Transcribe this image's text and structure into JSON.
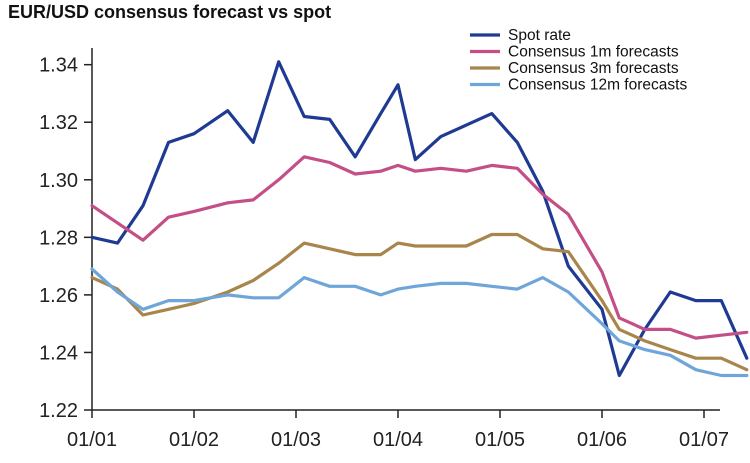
{
  "chart_data": {
    "type": "line",
    "title": "EUR/USD consensus forecast vs spot",
    "xlabel": "",
    "ylabel": "",
    "x_ticks": [
      "01/01",
      "01/02",
      "01/03",
      "01/04",
      "01/05",
      "01/06",
      "01/07"
    ],
    "ylim": [
      1.22,
      1.345
    ],
    "y_ticks": [
      "1.22",
      "1.24",
      "1.26",
      "1.28",
      "1.30",
      "1.32",
      "1.34"
    ],
    "y_tick_values": [
      1.22,
      1.24,
      1.26,
      1.28,
      1.3,
      1.32,
      1.34
    ],
    "grid": false,
    "legend_position": "top-right",
    "series": [
      {
        "name": "Spot rate",
        "color": "#1F3A93",
        "points": [
          [
            0.0,
            1.28
          ],
          [
            0.25,
            1.278
          ],
          [
            0.5,
            1.291
          ],
          [
            0.75,
            1.313
          ],
          [
            1.0,
            1.316
          ],
          [
            1.33,
            1.324
          ],
          [
            1.58,
            1.313
          ],
          [
            1.83,
            1.341
          ],
          [
            2.08,
            1.322
          ],
          [
            2.33,
            1.321
          ],
          [
            2.58,
            1.308
          ],
          [
            2.83,
            1.323
          ],
          [
            3.0,
            1.333
          ],
          [
            3.17,
            1.307
          ],
          [
            3.42,
            1.315
          ],
          [
            3.67,
            1.319
          ],
          [
            3.92,
            1.323
          ],
          [
            4.17,
            1.313
          ],
          [
            4.42,
            1.296
          ],
          [
            4.67,
            1.27
          ],
          [
            5.0,
            1.255
          ],
          [
            5.17,
            1.232
          ],
          [
            5.42,
            1.248
          ],
          [
            5.67,
            1.261
          ],
          [
            5.92,
            1.258
          ],
          [
            6.17,
            1.258
          ],
          [
            6.42,
            1.238
          ]
        ]
      },
      {
        "name": "Consensus 1m forecasts",
        "color": "#C44F86",
        "points": [
          [
            0.0,
            1.291
          ],
          [
            0.25,
            1.285
          ],
          [
            0.5,
            1.279
          ],
          [
            0.75,
            1.287
          ],
          [
            1.0,
            1.289
          ],
          [
            1.33,
            1.292
          ],
          [
            1.58,
            1.293
          ],
          [
            1.83,
            1.3
          ],
          [
            2.08,
            1.308
          ],
          [
            2.33,
            1.306
          ],
          [
            2.58,
            1.302
          ],
          [
            2.83,
            1.303
          ],
          [
            3.0,
            1.305
          ],
          [
            3.17,
            1.303
          ],
          [
            3.42,
            1.304
          ],
          [
            3.67,
            1.303
          ],
          [
            3.92,
            1.305
          ],
          [
            4.17,
            1.304
          ],
          [
            4.42,
            1.295
          ],
          [
            4.67,
            1.288
          ],
          [
            5.0,
            1.268
          ],
          [
            5.17,
            1.252
          ],
          [
            5.42,
            1.248
          ],
          [
            5.67,
            1.248
          ],
          [
            5.92,
            1.245
          ],
          [
            6.17,
            1.246
          ],
          [
            6.42,
            1.247
          ]
        ]
      },
      {
        "name": "Consensus 3m forecasts",
        "color": "#A8854A",
        "points": [
          [
            0.0,
            1.266
          ],
          [
            0.25,
            1.262
          ],
          [
            0.5,
            1.253
          ],
          [
            0.75,
            1.255
          ],
          [
            1.0,
            1.257
          ],
          [
            1.33,
            1.261
          ],
          [
            1.58,
            1.265
          ],
          [
            1.83,
            1.271
          ],
          [
            2.08,
            1.278
          ],
          [
            2.33,
            1.276
          ],
          [
            2.58,
            1.274
          ],
          [
            2.83,
            1.274
          ],
          [
            3.0,
            1.278
          ],
          [
            3.17,
            1.277
          ],
          [
            3.42,
            1.277
          ],
          [
            3.67,
            1.277
          ],
          [
            3.92,
            1.281
          ],
          [
            4.17,
            1.281
          ],
          [
            4.42,
            1.276
          ],
          [
            4.67,
            1.275
          ],
          [
            5.0,
            1.258
          ],
          [
            5.17,
            1.248
          ],
          [
            5.42,
            1.244
          ],
          [
            5.67,
            1.241
          ],
          [
            5.92,
            1.238
          ],
          [
            6.17,
            1.238
          ],
          [
            6.42,
            1.234
          ]
        ]
      },
      {
        "name": "Consensus 12m forecasts",
        "color": "#6FA6D9",
        "points": [
          [
            0.0,
            1.269
          ],
          [
            0.25,
            1.261
          ],
          [
            0.5,
            1.255
          ],
          [
            0.75,
            1.258
          ],
          [
            1.0,
            1.258
          ],
          [
            1.33,
            1.26
          ],
          [
            1.58,
            1.259
          ],
          [
            1.83,
            1.259
          ],
          [
            2.08,
            1.266
          ],
          [
            2.33,
            1.263
          ],
          [
            2.58,
            1.263
          ],
          [
            2.83,
            1.26
          ],
          [
            3.0,
            1.262
          ],
          [
            3.17,
            1.263
          ],
          [
            3.42,
            1.264
          ],
          [
            3.67,
            1.264
          ],
          [
            3.92,
            1.263
          ],
          [
            4.17,
            1.262
          ],
          [
            4.42,
            1.266
          ],
          [
            4.67,
            1.261
          ],
          [
            5.0,
            1.25
          ],
          [
            5.17,
            1.244
          ],
          [
            5.42,
            1.241
          ],
          [
            5.67,
            1.239
          ],
          [
            5.92,
            1.234
          ],
          [
            6.17,
            1.232
          ],
          [
            6.42,
            1.232
          ]
        ]
      }
    ]
  }
}
